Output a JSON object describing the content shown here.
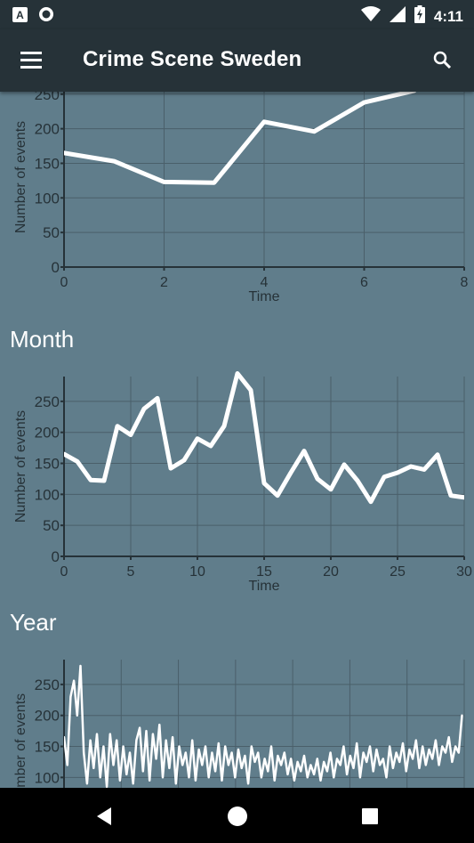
{
  "status_bar": {
    "time": "4:11",
    "left_icons": [
      "notification-a-icon",
      "sync-circle-icon"
    ],
    "right_icons": [
      "wifi-icon",
      "signal-icon",
      "battery-charging-icon"
    ]
  },
  "app_bar": {
    "title": "Crime Scene Sweden",
    "menu_icon": "hamburger-menu-icon",
    "search_icon": "search-icon"
  },
  "sections": [
    {
      "title": ""
    },
    {
      "title": "Month"
    },
    {
      "title": "Year"
    }
  ],
  "colors": {
    "background": "#607d8b",
    "appbar": "#263238",
    "line": "#ffffff",
    "grid": "#4a5f6a",
    "axis": "#263238"
  },
  "chart_data": [
    {
      "type": "line",
      "xlabel": "Time",
      "ylabel": "Number of events",
      "xlim": [
        0,
        8
      ],
      "ylim": [
        0,
        260
      ],
      "xticks": [
        0,
        2,
        4,
        6,
        8
      ],
      "yticks": [
        0,
        50,
        100,
        150,
        200,
        250
      ],
      "grid": true,
      "x": [
        0,
        1,
        2,
        3,
        4,
        5,
        6,
        7
      ],
      "y": [
        165,
        153,
        123,
        122,
        210,
        196,
        238,
        255
      ]
    },
    {
      "type": "line",
      "xlabel": "Time",
      "ylabel": "Number of events",
      "xlim": [
        0,
        30
      ],
      "ylim": [
        0,
        290
      ],
      "xticks": [
        0,
        5,
        10,
        15,
        20,
        25,
        30
      ],
      "yticks": [
        0,
        50,
        100,
        150,
        200,
        250
      ],
      "grid": true,
      "x": [
        0,
        1,
        2,
        3,
        4,
        5,
        6,
        7,
        8,
        9,
        10,
        11,
        12,
        13,
        14,
        15,
        16,
        17,
        18,
        19,
        20,
        21,
        22,
        23,
        24,
        25,
        26,
        27,
        28,
        29,
        30
      ],
      "y": [
        165,
        153,
        123,
        122,
        210,
        196,
        238,
        255,
        142,
        155,
        190,
        178,
        210,
        295,
        268,
        118,
        98,
        135,
        170,
        125,
        108,
        148,
        122,
        88,
        128,
        135,
        145,
        140,
        164,
        98,
        95
      ]
    },
    {
      "type": "line",
      "xlabel": "",
      "ylabel": "Number of events",
      "xlim": [
        0,
        365
      ],
      "ylim": [
        0,
        290
      ],
      "yticks": [
        100,
        150,
        200,
        250
      ],
      "grid": true,
      "x": [
        0,
        3,
        6,
        9,
        12,
        15,
        18,
        21,
        24,
        27,
        30,
        33,
        36,
        39,
        42,
        45,
        48,
        51,
        54,
        57,
        60,
        63,
        66,
        69,
        72,
        75,
        78,
        81,
        84,
        87,
        90,
        93,
        96,
        99,
        102,
        105,
        108,
        111,
        114,
        117,
        120,
        123,
        126,
        129,
        132,
        135,
        138,
        141,
        144,
        147,
        150,
        153,
        156,
        159,
        162,
        165,
        168,
        171,
        174,
        177,
        180,
        183,
        186,
        189,
        192,
        195,
        198,
        201,
        204,
        207,
        210,
        213,
        216,
        219,
        222,
        225,
        228,
        231,
        234,
        237,
        240,
        243,
        246,
        249,
        252,
        255,
        258,
        261,
        264,
        267,
        270,
        273,
        276,
        279,
        282,
        285,
        288,
        291,
        294,
        297,
        300,
        303,
        306,
        309,
        312,
        315,
        318,
        321,
        324,
        327,
        330,
        333,
        336,
        339,
        342,
        345,
        348,
        351,
        354,
        357,
        360,
        363
      ],
      "y": [
        165,
        120,
        230,
        256,
        200,
        280,
        140,
        90,
        160,
        115,
        170,
        100,
        150,
        85,
        170,
        120,
        160,
        95,
        150,
        105,
        140,
        90,
        160,
        180,
        110,
        175,
        95,
        170,
        130,
        185,
        100,
        160,
        115,
        165,
        90,
        150,
        120,
        140,
        100,
        160,
        95,
        145,
        120,
        150,
        100,
        140,
        110,
        155,
        95,
        150,
        120,
        140,
        100,
        145,
        115,
        135,
        90,
        150,
        125,
        140,
        100,
        130,
        110,
        150,
        95,
        135,
        120,
        140,
        105,
        130,
        95,
        125,
        110,
        135,
        100,
        120,
        105,
        130,
        95,
        125,
        110,
        140,
        100,
        130,
        120,
        150,
        105,
        135,
        115,
        155,
        100,
        140,
        125,
        150,
        110,
        145,
        120,
        130,
        100,
        150,
        115,
        140,
        125,
        155,
        110,
        145,
        130,
        160,
        115,
        150,
        120,
        145,
        130,
        160,
        120,
        150,
        140,
        165,
        125,
        150,
        140,
        200
      ]
    }
  ]
}
